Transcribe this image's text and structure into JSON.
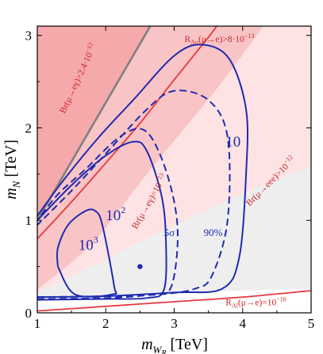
{
  "chart_data": {
    "type": "line",
    "title": "",
    "xlabel": "m_{W_R} [TeV]",
    "ylabel": "m_N [TeV]",
    "xlabel_main": "m",
    "xlabel_sub": "W",
    "xlabel_subsub": "R",
    "xlabel_unit": "[TeV]",
    "ylabel_main": "m",
    "ylabel_sub": "N",
    "ylabel_unit": "[TeV]",
    "xlim": [
      1,
      5
    ],
    "ylim": [
      0,
      3.1
    ],
    "x_ticks": [
      1,
      2,
      3,
      4,
      5
    ],
    "y_ticks": [
      0,
      1,
      2,
      3
    ],
    "x_tick_labels": [
      "1",
      "2",
      "3",
      "4",
      "5"
    ],
    "y_tick_labels": [
      "0",
      "1",
      "2",
      "3"
    ],
    "grid": false,
    "colors": {
      "region_dark": "#f6a9ab",
      "region_mid": "#f9c4c5",
      "region_light": "#fde3e3",
      "region_faint": "#eeeeee",
      "red_curve": "#e8383d",
      "blue_curve": "#1f2bb0",
      "gray_line": "#808080"
    },
    "regions": [
      {
        "id": "excluded-mueg-2.4e-12",
        "boundary": [
          [
            1.0,
            1.0
          ],
          [
            2.65,
            3.1
          ]
        ]
      },
      {
        "id": "excluded-mueee",
        "boundary": [
          [
            1.0,
            0.22
          ],
          [
            1.8,
            0.5
          ],
          [
            3.0,
            0.95
          ],
          [
            4.2,
            1.35
          ],
          [
            5.0,
            1.58
          ]
        ]
      },
      {
        "id": "excluded-mueg-1e-13",
        "boundary": [
          [
            1.0,
            0.25
          ],
          [
            1.8,
            0.75
          ],
          [
            2.6,
            1.5
          ],
          [
            3.6,
            2.4
          ],
          [
            4.3,
            3.1
          ]
        ]
      },
      {
        "id": "faint-background",
        "boundary": [
          [
            1.0,
            0.17
          ],
          [
            2.0,
            0.19
          ],
          [
            3.0,
            0.21
          ],
          [
            4.0,
            0.24
          ],
          [
            5.0,
            0.26
          ]
        ]
      }
    ],
    "series": [
      {
        "id": "red-upper",
        "style": "solid",
        "points": [
          [
            1.0,
            0.8
          ],
          [
            1.5,
            1.2
          ],
          [
            2.0,
            1.62
          ],
          [
            2.5,
            2.05
          ],
          [
            3.0,
            2.52
          ],
          [
            3.5,
            2.98
          ],
          [
            3.62,
            3.1
          ]
        ]
      },
      {
        "id": "red-lower",
        "style": "solid",
        "points": [
          [
            1.0,
            0.02
          ],
          [
            2.0,
            0.07
          ],
          [
            3.0,
            0.12
          ],
          [
            4.0,
            0.17
          ],
          [
            5.0,
            0.24
          ]
        ]
      },
      {
        "id": "gray-line",
        "style": "solid",
        "points": [
          [
            1.0,
            1.0
          ],
          [
            2.65,
            3.1
          ]
        ]
      },
      {
        "id": "blue-10",
        "style": "solid",
        "points": [
          [
            1.0,
            0.17
          ],
          [
            2.0,
            0.18
          ],
          [
            3.0,
            0.22
          ],
          [
            3.7,
            0.26
          ],
          [
            3.95,
            0.6
          ],
          [
            4.05,
            1.5
          ],
          [
            4.05,
            2.2
          ],
          [
            3.8,
            2.75
          ],
          [
            3.4,
            2.9
          ],
          [
            3.0,
            2.78
          ],
          [
            2.4,
            2.3
          ],
          [
            1.9,
            1.9
          ],
          [
            1.4,
            1.45
          ],
          [
            1.0,
            1.05
          ]
        ]
      },
      {
        "id": "blue-90pct",
        "style": "dashed",
        "points": [
          [
            1.0,
            0.17
          ],
          [
            2.0,
            0.18
          ],
          [
            2.8,
            0.2
          ],
          [
            3.3,
            0.26
          ],
          [
            3.55,
            0.4
          ],
          [
            3.78,
            1.0
          ],
          [
            3.78,
            1.9
          ],
          [
            3.5,
            2.3
          ],
          [
            3.0,
            2.4
          ],
          [
            2.6,
            2.2
          ],
          [
            2.0,
            1.72
          ],
          [
            1.5,
            1.32
          ],
          [
            1.0,
            0.95
          ]
        ]
      },
      {
        "id": "blue-5sigma",
        "style": "dashed",
        "points": [
          [
            1.0,
            0.15
          ],
          [
            2.0,
            0.16
          ],
          [
            2.7,
            0.2
          ],
          [
            2.95,
            0.27
          ],
          [
            3.05,
            0.75
          ],
          [
            3.0,
            1.2
          ],
          [
            2.8,
            1.7
          ],
          [
            2.55,
            1.98
          ],
          [
            2.2,
            1.9
          ],
          [
            1.7,
            1.55
          ],
          [
            1.3,
            1.28
          ],
          [
            1.0,
            1.0
          ]
        ]
      },
      {
        "id": "blue-1e2",
        "style": "solid",
        "points": [
          [
            1.0,
            0.14
          ],
          [
            2.0,
            0.15
          ],
          [
            2.6,
            0.16
          ],
          [
            2.85,
            0.25
          ],
          [
            2.88,
            0.75
          ],
          [
            2.82,
            1.25
          ],
          [
            2.6,
            1.75
          ],
          [
            2.4,
            1.85
          ],
          [
            2.0,
            1.7
          ],
          [
            1.5,
            1.38
          ],
          [
            1.0,
            1.0
          ]
        ]
      },
      {
        "id": "blue-1e3",
        "style": "solid",
        "points": [
          [
            1.3,
            0.5
          ],
          [
            1.3,
            0.7
          ],
          [
            1.45,
            0.95
          ],
          [
            1.7,
            1.1
          ],
          [
            1.85,
            1.1
          ],
          [
            1.95,
            0.95
          ],
          [
            2.12,
            0.3
          ],
          [
            2.1,
            0.2
          ],
          [
            1.55,
            0.2
          ],
          [
            1.3,
            0.5
          ]
        ]
      }
    ],
    "point": {
      "id": "benchmark-point",
      "x": 2.5,
      "y": 0.5
    },
    "annotations": [
      {
        "id": "ann-br-mueg-2.4",
        "text_main": "Br(μ→eγ)>2.4·10",
        "text_exp": "−12",
        "x": 1.4,
        "y": 2.15,
        "angle": -65,
        "color": "#c8282d"
      },
      {
        "id": "ann-rau",
        "text_main": "R",
        "text_sub": "Au",
        "text_rest": "(μ→e)>8·10",
        "text_exp": "−13",
        "x": 3.15,
        "y": 2.93,
        "angle": 0,
        "color": "#c8282d"
      },
      {
        "id": "ann-br-mueg-1e13",
        "text_main": "Br(μ→eγ)=10",
        "text_exp": "−13",
        "x": 2.45,
        "y": 0.9,
        "angle": -60,
        "color": "#c8282d"
      },
      {
        "id": "ann-br-mueee",
        "text_main": "Br(μ→eee)>10",
        "text_exp": "−12",
        "x": 4.1,
        "y": 1.15,
        "angle": -45,
        "color": "#c8282d"
      },
      {
        "id": "ann-ral",
        "text_main": "R",
        "text_sub": "Al",
        "text_rest": "(μ→e)=10",
        "text_exp": "−16",
        "x": 3.75,
        "y": 0.08,
        "angle": 0,
        "color": "#c8282d"
      },
      {
        "id": "label-10",
        "text_main": "10",
        "x": 3.75,
        "y": 1.8,
        "color": "#1f2bb0"
      },
      {
        "id": "label-1e2",
        "text_main": "10",
        "text_exp": "2",
        "x": 2.0,
        "y": 1.0,
        "color": "#1f2bb0"
      },
      {
        "id": "label-1e3",
        "text_main": "10",
        "text_exp": "3",
        "x": 1.6,
        "y": 0.68,
        "color": "#1f2bb0"
      },
      {
        "id": "label-5sigma",
        "text_main": "5σ",
        "x": 2.85,
        "y": 0.83,
        "color": "#1f2bb0"
      },
      {
        "id": "label-90pct",
        "text_main": "90%",
        "x": 3.43,
        "y": 0.83,
        "color": "#1f2bb0"
      }
    ]
  }
}
